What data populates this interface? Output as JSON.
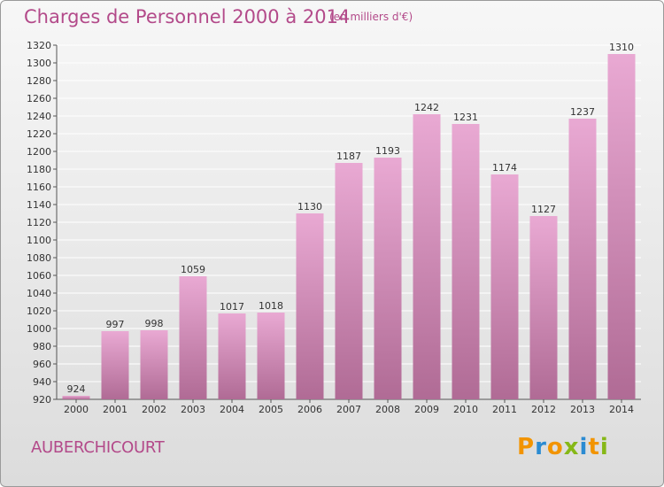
{
  "title": "Charges de Personnel 2000 à 2014",
  "subtitle": "(en milliers d'€)",
  "commune": "AUBERCHICOURT",
  "logo": [
    "P",
    "r",
    "o",
    "x",
    "i",
    "t",
    "i"
  ],
  "colors": {
    "title": "#b34a8a",
    "bar_top": "#e9a9d3",
    "bar_bottom": "#b06b95",
    "logo": [
      "#f29400",
      "#2b8bd2",
      "#f29400",
      "#86b817",
      "#2b8bd2",
      "#f29400",
      "#86b817"
    ]
  },
  "chart_data": {
    "type": "bar",
    "categories": [
      "2000",
      "2001",
      "2002",
      "2003",
      "2004",
      "2005",
      "2006",
      "2007",
      "2008",
      "2009",
      "2010",
      "2011",
      "2012",
      "2013",
      "2014"
    ],
    "values": [
      924,
      997,
      998,
      1059,
      1017,
      1018,
      1130,
      1187,
      1193,
      1242,
      1231,
      1174,
      1127,
      1237,
      1310
    ],
    "ylim": [
      920,
      1320
    ],
    "yticks": [
      920,
      940,
      960,
      980,
      1000,
      1020,
      1040,
      1060,
      1080,
      1100,
      1120,
      1140,
      1160,
      1180,
      1200,
      1220,
      1240,
      1260,
      1280,
      1300,
      1320
    ],
    "grid": true,
    "xlabel": "",
    "ylabel": ""
  }
}
